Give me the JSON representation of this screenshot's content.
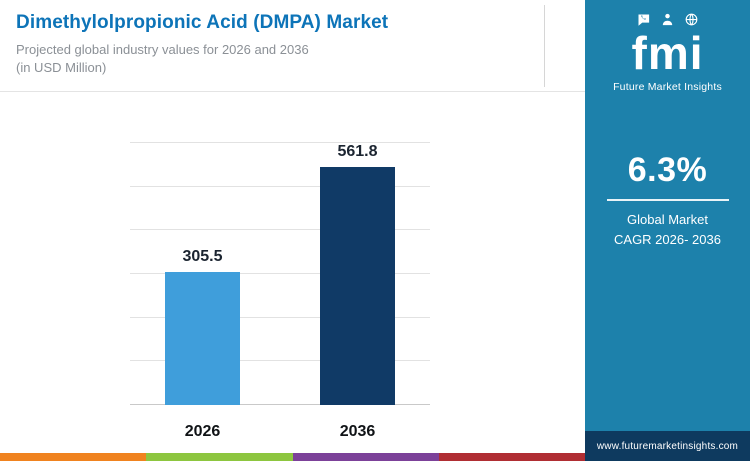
{
  "header": {
    "title": "Dimethylolpropionic Acid (DMPA) Market",
    "subtitle_line1": "Projected global industry values for 2026 and 2036",
    "subtitle_line2": "(in USD Million)"
  },
  "chart_data": {
    "type": "bar",
    "categories": [
      "2026",
      "2036"
    ],
    "values": [
      305.5,
      561.8
    ],
    "value_labels": [
      "305.5",
      "561.8"
    ],
    "bar_colors": [
      "#3f9edb",
      "#103a66"
    ],
    "title": "Dimethylolpropionic Acid (DMPA) Market",
    "xlabel": "",
    "ylabel": "USD Million",
    "ylim": [
      0,
      600
    ],
    "grid_step": 100,
    "grid": true,
    "legend": "none"
  },
  "sidebar": {
    "logo_text": "fmi",
    "logo_subtext": "Future Market Insights",
    "cagr_value": "6.3%",
    "cagr_label_line1": "Global Market",
    "cagr_label_line2": "CAGR 2026- 2036",
    "website": "www.futuremarketinsights.com",
    "colors": {
      "background": "#1d81ab",
      "footer": "#0e3a5f"
    }
  },
  "footer_stripe_colors": [
    "#f0831f",
    "#8dc63f",
    "#7c4199",
    "#b02e33"
  ]
}
